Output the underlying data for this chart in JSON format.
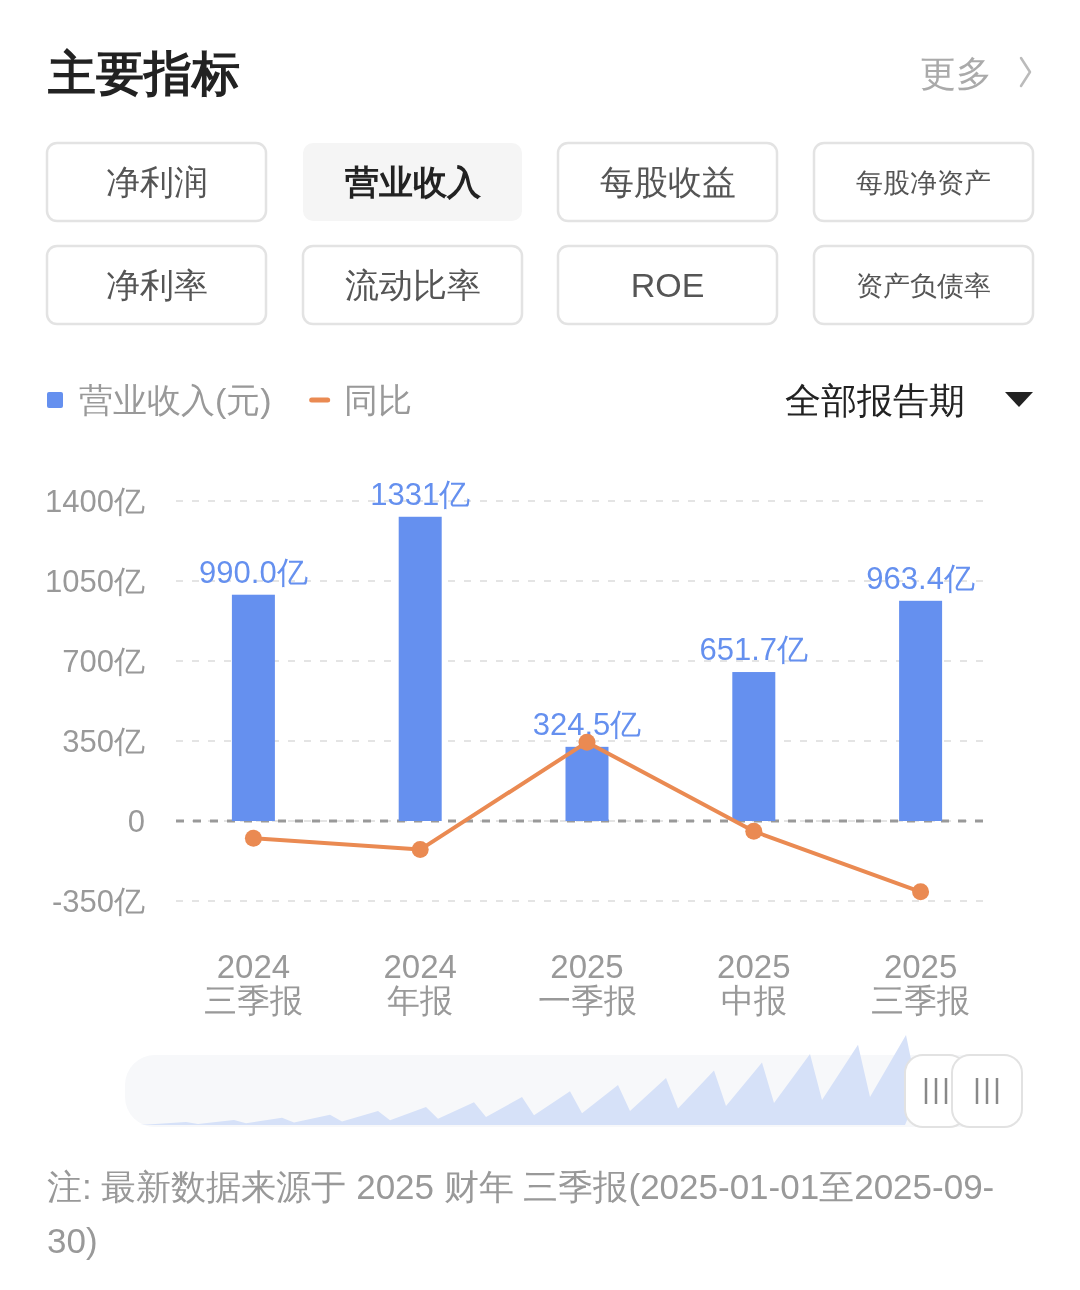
{
  "chart_data": {
    "type": "bar",
    "title": "主要指标",
    "categories": [
      "2024\n三季报",
      "2024\n年报",
      "2025\n一季报",
      "2025\n中报",
      "2025\n三季报"
    ],
    "series": [
      {
        "name": "营业收入(元)",
        "color": "#6590ef",
        "values": [
          990.0,
          1331,
          324.5,
          651.7,
          963.4
        ],
        "value_labels": [
          "990.0亿",
          "1331亿",
          "324.5亿",
          "651.7亿",
          "963.4亿"
        ]
      },
      {
        "name": "同比",
        "type": "line",
        "color": "#ea8a52",
        "values": [
          -75,
          -125,
          345,
          -45,
          -310
        ]
      }
    ],
    "ylim": [
      -350,
      1400
    ],
    "yticks": [
      {
        "value": -350,
        "label": "-350亿"
      },
      0,
      {
        "value": 350,
        "label": "350亿"
      },
      {
        "value": 700,
        "label": "700亿"
      },
      {
        "value": 1050,
        "label": "1050亿"
      },
      {
        "value": 1400,
        "label": "1400亿"
      }
    ],
    "grid": "y",
    "ref_lines": [
      {
        "axis": "y",
        "value": 0,
        "color": "#999999",
        "line_style": "dashed"
      }
    ],
    "legend": "top left",
    "marker": "circle",
    "line_style": "solid",
    "annotations": [
      "更多",
      "净利润",
      "营业收入",
      "每股收益",
      "每股净资产",
      "净利率",
      "流动比率",
      "ROE",
      "资产负债率",
      "全部报告期",
      "注: 最新数据来源于 2025 财年 三季报(2025-01-01至2025-09-30)"
    ]
  }
}
